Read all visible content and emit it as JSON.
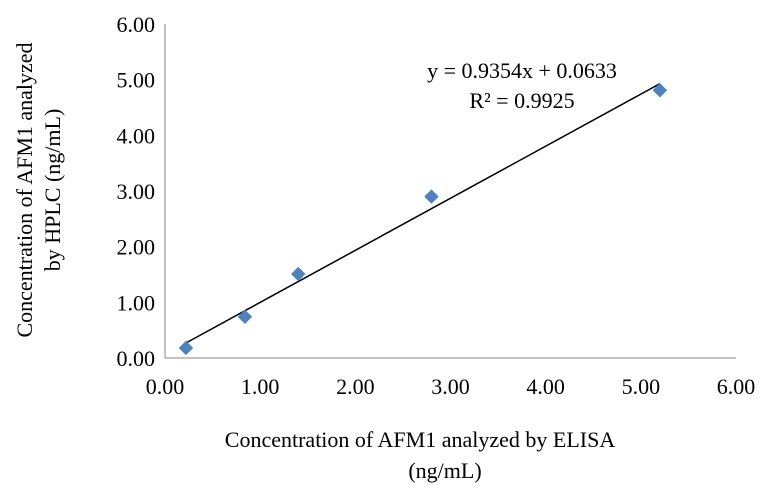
{
  "chart_data": {
    "type": "scatter",
    "title": "",
    "xlabel_lines": [
      "Concentration of  AFM1 analyzed by ELISA",
      "(ng/mL)"
    ],
    "ylabel_lines": [
      "Concentration of  AFM1 analyzed",
      "by HPLC (ng/mL)"
    ],
    "xlim": [
      0,
      6
    ],
    "ylim": [
      0,
      6
    ],
    "x_ticks": [
      "0.00",
      "1.00",
      "2.00",
      "3.00",
      "4.00",
      "5.00",
      "6.00"
    ],
    "y_ticks": [
      "0.00",
      "1.00",
      "2.00",
      "3.00",
      "4.00",
      "5.00",
      "6.00"
    ],
    "grid": false,
    "legend": "none",
    "marker": "diamond",
    "marker_color": "#4f81bd",
    "series": [
      {
        "points": [
          {
            "x": 0.22,
            "y": 0.18
          },
          {
            "x": 0.84,
            "y": 0.74
          },
          {
            "x": 1.4,
            "y": 1.51
          },
          {
            "x": 2.8,
            "y": 2.9
          },
          {
            "x": 5.2,
            "y": 4.81
          }
        ]
      }
    ],
    "trendline": {
      "type": "linear",
      "slope": 0.9354,
      "intercept": 0.0633,
      "x_range": [
        0.22,
        5.2
      ],
      "color": "#000000",
      "equation": "y = 0.9354x + 0.0633",
      "r_squared": "R² = 0.9925"
    }
  }
}
